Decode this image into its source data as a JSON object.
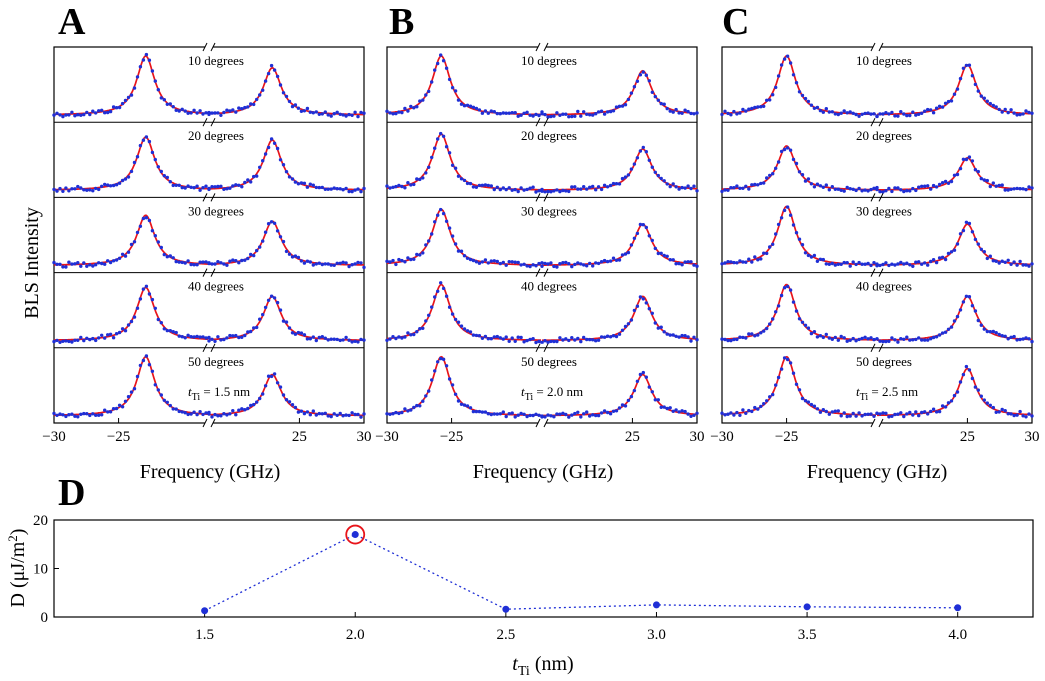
{
  "panel_labels": [
    "A",
    "B",
    "C",
    "D"
  ],
  "chart_data": [
    {
      "type": "line",
      "panel": "A",
      "ylabel": "BLS Intensity",
      "xlabel": "Frequency (GHz)",
      "x_ticks": [
        "−30",
        "−25",
        "25",
        "30"
      ],
      "xlim_left": [
        -30,
        -18
      ],
      "xlim_right": [
        18,
        30
      ],
      "thickness_label": {
        "prefix": "t",
        "subscript": "Ti",
        "suffix": " = 1.5 nm"
      },
      "subplots": [
        {
          "label": "10 degrees",
          "peaks": [
            {
              "f": -22.9,
              "a": 1.0
            },
            {
              "f": 22.9,
              "a": 0.8
            }
          ]
        },
        {
          "label": "20 degrees",
          "peaks": [
            {
              "f": -22.9,
              "a": 0.9
            },
            {
              "f": 22.9,
              "a": 0.85
            }
          ]
        },
        {
          "label": "30 degrees",
          "peaks": [
            {
              "f": -22.9,
              "a": 0.85
            },
            {
              "f": 22.9,
              "a": 0.75
            }
          ]
        },
        {
          "label": "40 degrees",
          "peaks": [
            {
              "f": -22.9,
              "a": 0.9
            },
            {
              "f": 22.9,
              "a": 0.75
            }
          ]
        },
        {
          "label": "50 degrees",
          "peaks": [
            {
              "f": -22.9,
              "a": 1.0
            },
            {
              "f": 22.9,
              "a": 0.7
            }
          ]
        }
      ]
    },
    {
      "type": "line",
      "panel": "B",
      "ylabel": "",
      "xlabel": "Frequency (GHz)",
      "x_ticks": [
        "−30",
        "−25",
        "25",
        "30"
      ],
      "xlim_left": [
        -30,
        -18
      ],
      "xlim_right": [
        18,
        30
      ],
      "thickness_label": {
        "prefix": "t",
        "subscript": "Ti",
        "suffix": " = 2.0 nm"
      },
      "subplots": [
        {
          "label": "10 degrees",
          "peaks": [
            {
              "f": -25.8,
              "a": 1.0
            },
            {
              "f": 25.8,
              "a": 0.75
            }
          ]
        },
        {
          "label": "20 degrees",
          "peaks": [
            {
              "f": -25.8,
              "a": 0.95
            },
            {
              "f": 25.8,
              "a": 0.7
            }
          ]
        },
        {
          "label": "30 degrees",
          "peaks": [
            {
              "f": -25.8,
              "a": 0.95
            },
            {
              "f": 25.8,
              "a": 0.7
            }
          ]
        },
        {
          "label": "40 degrees",
          "peaks": [
            {
              "f": -25.8,
              "a": 0.95
            },
            {
              "f": 25.8,
              "a": 0.75
            }
          ]
        },
        {
          "label": "50 degrees",
          "peaks": [
            {
              "f": -25.8,
              "a": 1.0
            },
            {
              "f": 25.8,
              "a": 0.7
            }
          ]
        }
      ]
    },
    {
      "type": "line",
      "panel": "C",
      "ylabel": "",
      "xlabel": "Frequency (GHz)",
      "x_ticks": [
        "−30",
        "−25",
        "25",
        "30"
      ],
      "xlim_left": [
        -30,
        -18
      ],
      "xlim_right": [
        18,
        30
      ],
      "thickness_label": {
        "prefix": "t",
        "subscript": "Ti",
        "suffix": " = 2.5 nm"
      },
      "subplots": [
        {
          "label": "10 degrees",
          "peaks": [
            {
              "f": -25.0,
              "a": 1.0
            },
            {
              "f": 25.0,
              "a": 0.85
            }
          ]
        },
        {
          "label": "20 degrees",
          "peaks": [
            {
              "f": -25.0,
              "a": 0.75
            },
            {
              "f": 25.0,
              "a": 0.55
            }
          ]
        },
        {
          "label": "30 degrees",
          "peaks": [
            {
              "f": -25.0,
              "a": 1.0
            },
            {
              "f": 25.0,
              "a": 0.7
            }
          ]
        },
        {
          "label": "40 degrees",
          "peaks": [
            {
              "f": -25.0,
              "a": 0.95
            },
            {
              "f": 25.0,
              "a": 0.75
            }
          ]
        },
        {
          "label": "50 degrees",
          "peaks": [
            {
              "f": -25.0,
              "a": 1.0
            },
            {
              "f": 25.0,
              "a": 0.8
            }
          ]
        }
      ]
    },
    {
      "type": "scatter",
      "panel": "D",
      "ylabel_prefix": "D (μJ/m",
      "ylabel_sup": "2",
      "ylabel_suffix": ")",
      "xlabel_prefix": "t",
      "xlabel_sub": "Ti",
      "xlabel_suffix": " (nm)",
      "x": [
        1.5,
        2.0,
        2.5,
        3.0,
        3.5,
        4.0
      ],
      "y": [
        1.3,
        17.0,
        1.6,
        2.5,
        2.1,
        1.9
      ],
      "highlight_index": 1,
      "xlim": [
        1.0,
        4.25
      ],
      "ylim": [
        0,
        20
      ],
      "x_ticks": [
        "1.5",
        "2.0",
        "2.5",
        "3.0",
        "3.5",
        "4.0"
      ],
      "y_ticks": [
        "0",
        "10",
        "20"
      ]
    }
  ]
}
